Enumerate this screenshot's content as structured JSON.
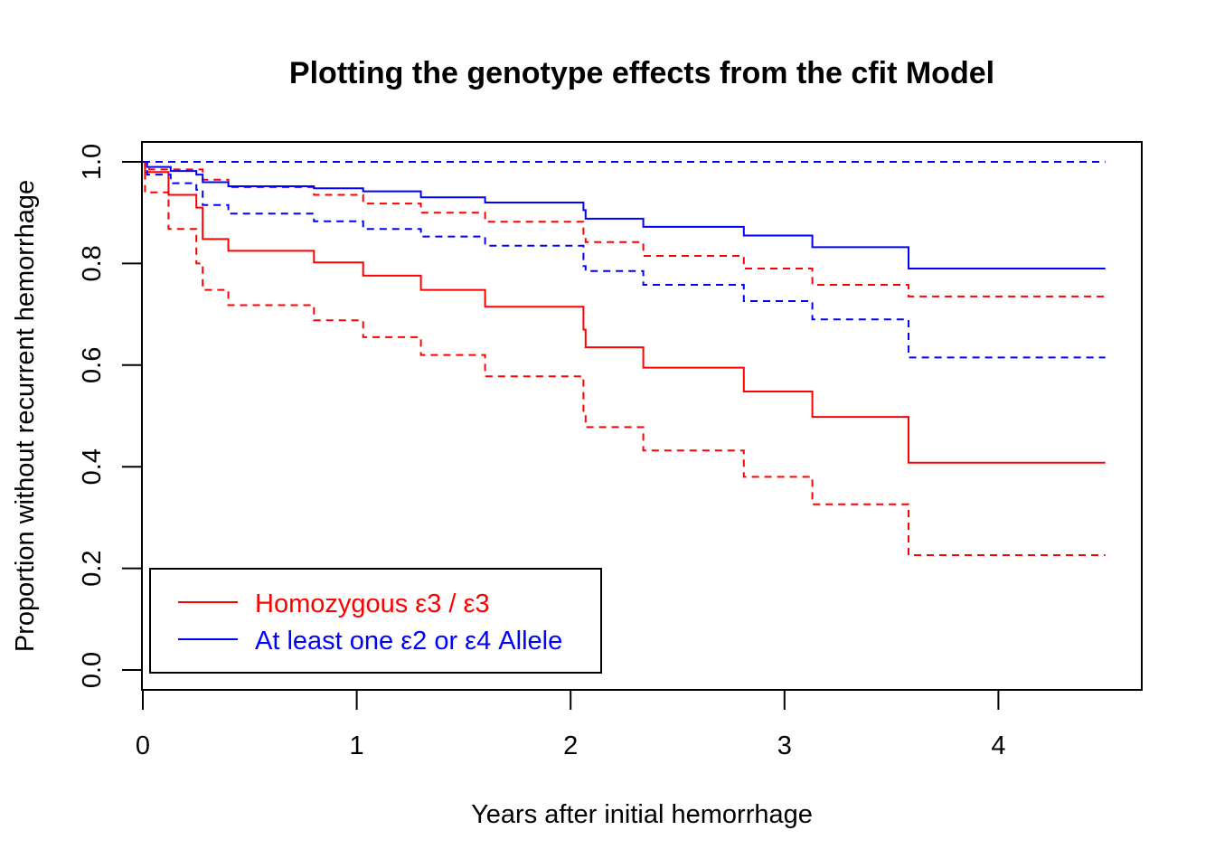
{
  "chart_data": {
    "type": "line",
    "title": "Plotting the genotype effects from the cfit Model",
    "xlabel": "Years after initial hemorrhage",
    "ylabel": "Proportion without recurrent hemorrhage",
    "xlim": [
      0,
      4.5
    ],
    "ylim": [
      0,
      1
    ],
    "x_ticks": [
      "0",
      "1",
      "2",
      "3",
      "4"
    ],
    "y_ticks": [
      "0.0",
      "0.2",
      "0.4",
      "0.6",
      "0.8",
      "1.0"
    ],
    "grid": false,
    "legend_position": "bottom-left",
    "step": true,
    "series": [
      {
        "name": "Homozygous ε3 / ε3",
        "color": "#ff0000",
        "style": "solid",
        "x": [
          0,
          0.01,
          0.12,
          0.25,
          0.28,
          0.4,
          0.8,
          1.03,
          1.3,
          1.6,
          2.06,
          2.07,
          2.34,
          2.81,
          3.13,
          3.58,
          4.5
        ],
        "y": [
          1.0,
          0.98,
          0.935,
          0.91,
          0.848,
          0.825,
          0.802,
          0.776,
          0.748,
          0.715,
          0.67,
          0.635,
          0.595,
          0.548,
          0.498,
          0.408,
          0.408
        ]
      },
      {
        "name": "Homozygous ε3 / ε3 lower CI",
        "color": "#ff0000",
        "style": "dashed",
        "x": [
          0,
          0.01,
          0.12,
          0.25,
          0.28,
          0.4,
          0.8,
          1.03,
          1.3,
          1.6,
          2.06,
          2.07,
          2.34,
          2.81,
          3.13,
          3.58,
          4.5
        ],
        "y": [
          1.0,
          0.94,
          0.868,
          0.8,
          0.748,
          0.718,
          0.688,
          0.655,
          0.62,
          0.578,
          0.51,
          0.478,
          0.432,
          0.38,
          0.326,
          0.226,
          0.226
        ]
      },
      {
        "name": "Homozygous ε3 / ε3 upper CI",
        "color": "#ff0000",
        "style": "dashed",
        "x": [
          0,
          0.03,
          0.28,
          0.4,
          0.8,
          1.03,
          1.3,
          1.6,
          2.06,
          2.07,
          2.34,
          2.81,
          3.13,
          3.58,
          4.5
        ],
        "y": [
          1.0,
          0.985,
          0.965,
          0.95,
          0.935,
          0.918,
          0.9,
          0.882,
          0.855,
          0.842,
          0.815,
          0.79,
          0.758,
          0.735,
          0.735
        ]
      },
      {
        "name": "At least one ε2 or ε4 Allele",
        "color": "#0000ff",
        "style": "solid",
        "x": [
          0,
          0.02,
          0.13,
          0.25,
          0.28,
          0.4,
          0.8,
          1.03,
          1.3,
          1.6,
          2.06,
          2.07,
          2.34,
          2.81,
          3.13,
          3.58,
          4.5
        ],
        "y": [
          1.0,
          0.99,
          0.982,
          0.975,
          0.96,
          0.952,
          0.948,
          0.942,
          0.93,
          0.92,
          0.905,
          0.888,
          0.872,
          0.855,
          0.832,
          0.79,
          0.79
        ]
      },
      {
        "name": "At least one ε2 or ε4 Allele lower CI",
        "color": "#0000ff",
        "style": "dashed",
        "x": [
          0,
          0.02,
          0.13,
          0.25,
          0.28,
          0.4,
          0.8,
          1.03,
          1.3,
          1.6,
          2.06,
          2.07,
          2.34,
          2.81,
          3.13,
          3.58,
          4.5
        ],
        "y": [
          1.0,
          0.975,
          0.958,
          0.945,
          0.915,
          0.898,
          0.883,
          0.868,
          0.853,
          0.835,
          0.795,
          0.785,
          0.758,
          0.726,
          0.69,
          0.615,
          0.615
        ]
      },
      {
        "name": "At least one ε2 or ε4 Allele upper CI",
        "color": "#0000ff",
        "style": "dashed",
        "x": [
          0,
          4.5
        ],
        "y": [
          1.0,
          1.0
        ]
      }
    ],
    "legend": [
      {
        "label": "Homozygous ε3 / ε3",
        "color": "#ff0000"
      },
      {
        "label": "At least one ε2 or ε4 Allele",
        "color": "#0000ff"
      }
    ]
  }
}
